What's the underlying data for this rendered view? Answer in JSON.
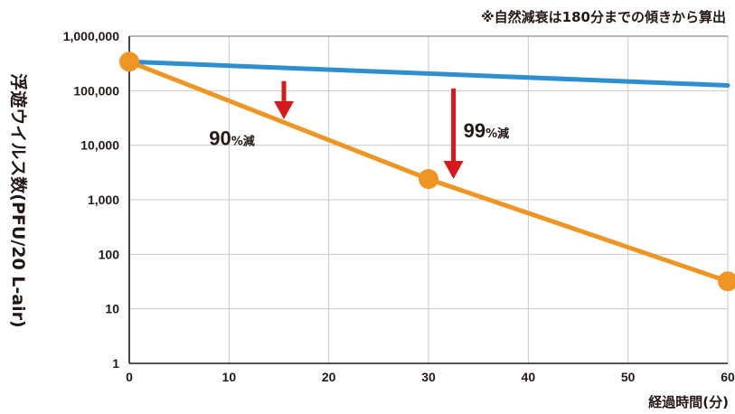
{
  "chart_data": {
    "type": "line",
    "note": "※自然減衰は180分までの傾きから算出",
    "xlabel": "経過時間(分)",
    "ylabel": "浮遊ウイルス数(PFU/20 L-air)",
    "xlim": [
      0,
      60
    ],
    "ylim": [
      1,
      1000000
    ],
    "yscale": "log",
    "grid": true,
    "x_ticks": [
      0,
      10,
      20,
      30,
      40,
      50,
      60
    ],
    "x_tick_labels": [
      "0",
      "10",
      "20",
      "30",
      "40",
      "50",
      "60"
    ],
    "y_ticks": [
      1,
      10,
      100,
      1000,
      10000,
      100000,
      1000000
    ],
    "y_tick_labels": [
      "1",
      "10",
      "100",
      "1,000",
      "10,000",
      "100,000",
      "1,000,000"
    ],
    "series": [
      {
        "name": "",
        "color": "#2e8fd0",
        "markers": false,
        "points": [
          [
            0,
            340000
          ],
          [
            60,
            125000
          ]
        ]
      },
      {
        "name": "",
        "color": "#ee9523",
        "markers": true,
        "points": [
          [
            0,
            340000
          ],
          [
            30,
            2400
          ],
          [
            60,
            32
          ]
        ]
      }
    ],
    "annotations": [
      {
        "x": 15.5,
        "y_from": 150000,
        "y_to": 30000,
        "color": "#d7191c",
        "value": "90",
        "unit": "%減",
        "label_x": 8,
        "label_y": 10000
      },
      {
        "x": 32.5,
        "y_from": 110000,
        "y_to": 2400,
        "color": "#d7191c",
        "value": "99",
        "unit": "%減",
        "label_x": 33.5,
        "label_y": 14000
      }
    ]
  }
}
